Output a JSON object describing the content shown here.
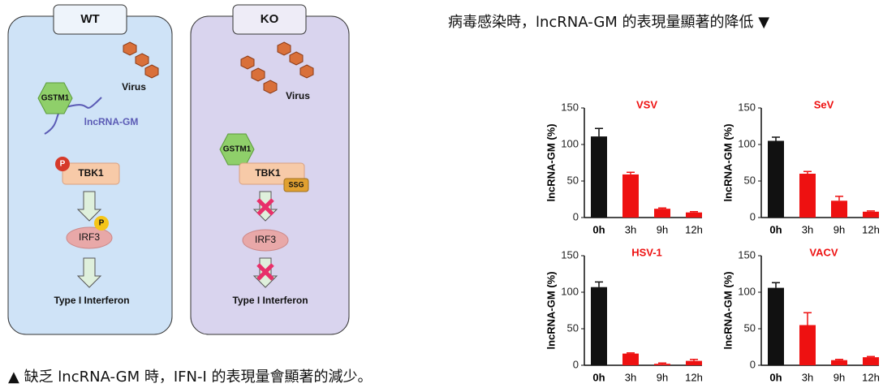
{
  "diagram": {
    "wt": {
      "label": "WT",
      "virus": "Virus",
      "gstm1": "GSTM1",
      "lncrna": "lncRNA-GM",
      "tbk1": "TBK1",
      "p1": "P",
      "p2": "P",
      "irf3": "IRF3",
      "output": "Type I Interferon"
    },
    "ko": {
      "label": "KO",
      "virus": "Virus",
      "gstm1": "GSTM1",
      "tbk1": "TBK1",
      "ssg": "SSG",
      "irf3": "IRF3",
      "output": "Type I Interferon"
    }
  },
  "captions": {
    "top": "病毒感染時，lncRNA-GM 的表現量顯著的降低 ▼",
    "bottom": "▲ 缺乏 lncRNA-GM 時，IFN-I 的表現量會顯著的減少。"
  },
  "chart_data": [
    {
      "type": "bar",
      "title": "VSV",
      "y_label": "lncRNA-GM (%)",
      "categories": [
        "0h",
        "3h",
        "9h",
        "12h"
      ],
      "values": [
        111,
        59,
        12,
        7
      ],
      "errors": [
        11,
        3,
        1,
        1
      ],
      "colors": [
        "#111111",
        "#ee1111",
        "#ee1111",
        "#ee1111"
      ],
      "ylim": [
        0,
        150
      ],
      "yticks": [
        0,
        50,
        100,
        150
      ]
    },
    {
      "type": "bar",
      "title": "SeV",
      "y_label": "lncRNA-GM (%)",
      "categories": [
        "0h",
        "3h",
        "9h",
        "12h"
      ],
      "values": [
        105,
        60,
        23,
        8
      ],
      "errors": [
        5,
        3,
        6,
        1
      ],
      "colors": [
        "#111111",
        "#ee1111",
        "#ee1111",
        "#ee1111"
      ],
      "ylim": [
        0,
        150
      ],
      "yticks": [
        0,
        50,
        100,
        150
      ]
    },
    {
      "type": "bar",
      "title": "HSV-1",
      "y_label": "lncRNA-GM (%)",
      "categories": [
        "0h",
        "3h",
        "9h",
        "12h"
      ],
      "values": [
        107,
        16,
        2,
        6
      ],
      "errors": [
        7,
        1,
        1,
        2
      ],
      "colors": [
        "#111111",
        "#ee1111",
        "#ee1111",
        "#ee1111"
      ],
      "ylim": [
        0,
        150
      ],
      "yticks": [
        0,
        50,
        100,
        150
      ]
    },
    {
      "type": "bar",
      "title": "VACV",
      "y_label": "lncRNA-GM (%)",
      "categories": [
        "0h",
        "3h",
        "9h",
        "12h"
      ],
      "values": [
        106,
        55,
        7,
        11
      ],
      "errors": [
        7,
        17,
        1,
        1
      ],
      "colors": [
        "#111111",
        "#ee1111",
        "#ee1111",
        "#ee1111"
      ],
      "ylim": [
        0,
        150
      ],
      "yticks": [
        0,
        50,
        100,
        150
      ]
    }
  ]
}
